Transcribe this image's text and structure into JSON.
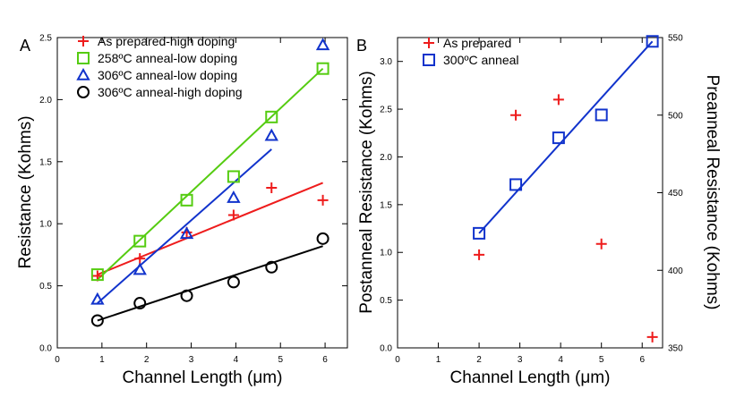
{
  "chart_data": [
    {
      "type": "scatter",
      "panel_label": "A",
      "xlabel": "Channel Length (μm)",
      "ylabel": "Resistance (Kohms)",
      "xlim": [
        0,
        6.5
      ],
      "ylim": [
        0,
        2.5
      ],
      "xticks": [
        "0",
        "1",
        "2",
        "3",
        "4",
        "5",
        "6"
      ],
      "yticks": [
        "0.0",
        "0.5",
        "1.0",
        "1.5",
        "2.0",
        "2.5"
      ],
      "legend_position": "top-left",
      "series": [
        {
          "name": "As prepared-high doping",
          "marker": "plus",
          "color": "#ee1c1c",
          "x": [
            0.9,
            1.85,
            2.9,
            3.95,
            4.8,
            5.95
          ],
          "y": [
            0.58,
            0.72,
            0.93,
            1.07,
            1.29,
            1.19
          ],
          "fit": [
            [
              0.9,
              0.59
            ],
            [
              5.95,
              1.33
            ]
          ]
        },
        {
          "name": "258ºC anneal-low doping",
          "marker": "square",
          "color": "#55cc11",
          "x": [
            0.9,
            1.85,
            2.9,
            3.95,
            4.8,
            5.95
          ],
          "y": [
            0.59,
            0.86,
            1.19,
            1.38,
            1.86,
            2.25
          ],
          "fit": [
            [
              0.9,
              0.55
            ],
            [
              5.95,
              2.25
            ]
          ]
        },
        {
          "name": "306ºC anneal-low doping",
          "marker": "triangle",
          "color": "#1133cc",
          "x": [
            0.9,
            1.85,
            2.9,
            3.95,
            4.8,
            5.95
          ],
          "y": [
            0.39,
            0.63,
            0.92,
            1.21,
            1.71,
            2.44
          ],
          "fit": [
            [
              0.9,
              0.36
            ],
            [
              4.8,
              1.6
            ]
          ]
        },
        {
          "name": "306ºC anneal-high doping",
          "marker": "circle",
          "color": "#000000",
          "x": [
            0.9,
            1.85,
            2.9,
            3.95,
            4.8,
            5.95
          ],
          "y": [
            0.22,
            0.36,
            0.42,
            0.53,
            0.65,
            0.88
          ],
          "fit": [
            [
              0.9,
              0.22
            ],
            [
              5.95,
              0.82
            ]
          ]
        }
      ]
    },
    {
      "type": "scatter",
      "panel_label": "B",
      "xlabel": "Channel Length (μm)",
      "ylabel": "Postanneal Resistance (Kohms)",
      "ylabel_right": "Preanneal Resistance (Kohms)",
      "xlim": [
        0,
        6.5
      ],
      "ylim": [
        0,
        3.25
      ],
      "ylim_right": [
        350,
        550
      ],
      "xticks": [
        "0",
        "1",
        "2",
        "3",
        "4",
        "5",
        "6"
      ],
      "yticks": [
        "0.0",
        "0.5",
        "1.0",
        "1.5",
        "2.0",
        "2.5",
        "3.0"
      ],
      "yticks_right": [
        "350",
        "400",
        "450",
        "500",
        "550"
      ],
      "legend_position": "top-left",
      "series": [
        {
          "name": "As prepared",
          "marker": "plus",
          "color": "#ee1c1c",
          "axis": "right",
          "x": [
            2.0,
            2.9,
            3.95,
            5.0,
            6.25
          ],
          "y": [
            410,
            500,
            510,
            417,
            357
          ]
        },
        {
          "name": "300ºC anneal",
          "marker": "square",
          "color": "#1133cc",
          "axis": "left",
          "x": [
            2.0,
            2.9,
            3.95,
            5.0,
            6.25
          ],
          "y": [
            1.2,
            1.71,
            2.2,
            2.44,
            3.21
          ],
          "fit": [
            [
              2.0,
              1.2
            ],
            [
              6.25,
              3.21
            ]
          ]
        }
      ]
    }
  ]
}
